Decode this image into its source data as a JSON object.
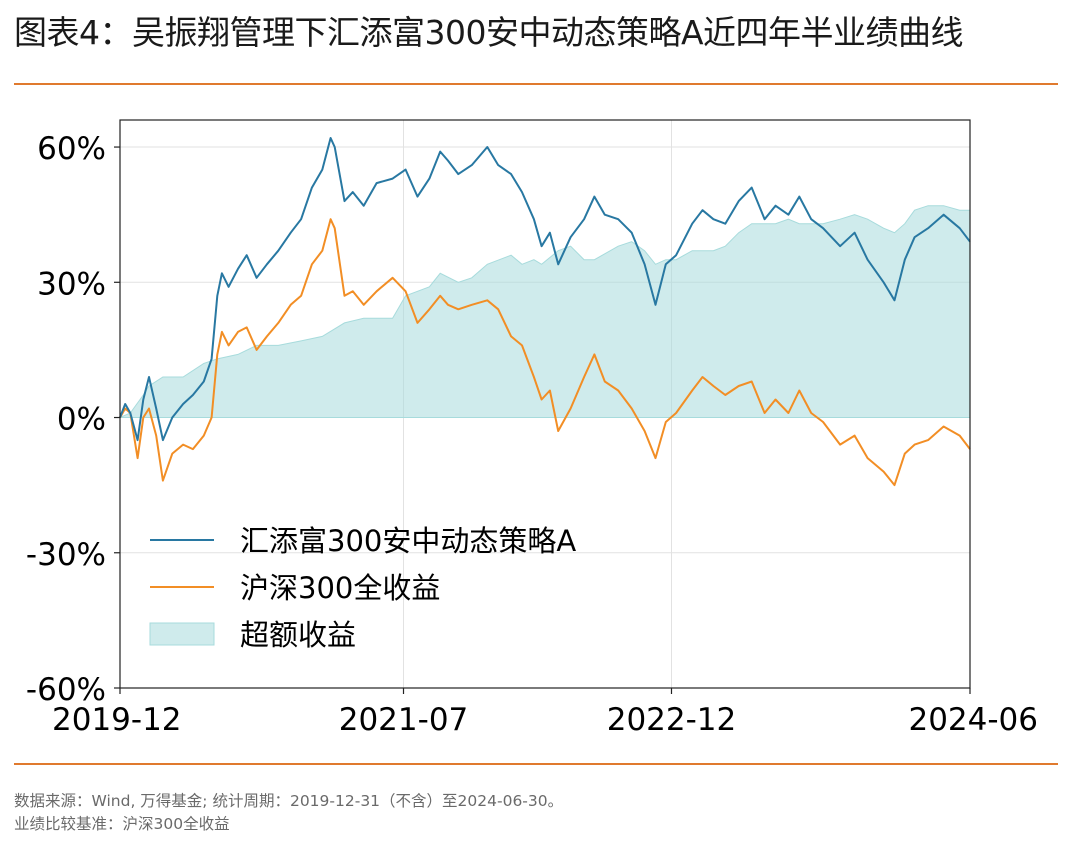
{
  "header": {
    "title": "图表4：吴振翔管理下汇添富300安中动态策略A近四年半业绩曲线"
  },
  "footer": {
    "source_note": "数据来源：Wind, 万得基金; 统计周期：2019-12-31（不含）至2024-06-30。",
    "benchmark_note": "业绩比较基准：沪深300全收益"
  },
  "chart_data": {
    "type": "line",
    "title": "",
    "xlabel": "",
    "ylabel": "",
    "x_ticks": [
      "2019-12",
      "2021-07",
      "2022-12",
      "2024-06"
    ],
    "y_ticks": [
      "60%",
      "30%",
      "0%",
      "-30%",
      "-60%"
    ],
    "ylim": [
      -60,
      66
    ],
    "xlim": [
      "2019-12-31",
      "2024-06-30"
    ],
    "grid": true,
    "legend_position": "lower-left",
    "colors": {
      "fund": "#2878a2",
      "benchmark": "#f28e25",
      "excess": "#a7dbdc"
    },
    "series": [
      {
        "name": "汇添富300安中动态策略A",
        "kind": "line",
        "points": [
          [
            "2019-12-31",
            0
          ],
          [
            "2020-01-10",
            3
          ],
          [
            "2020-01-20",
            1
          ],
          [
            "2020-02-03",
            -5
          ],
          [
            "2020-02-14",
            4
          ],
          [
            "2020-02-25",
            9
          ],
          [
            "2020-03-10",
            2
          ],
          [
            "2020-03-23",
            -5
          ],
          [
            "2020-04-10",
            0
          ],
          [
            "2020-05-01",
            3
          ],
          [
            "2020-05-20",
            5
          ],
          [
            "2020-06-10",
            8
          ],
          [
            "2020-06-25",
            13
          ],
          [
            "2020-07-06",
            27
          ],
          [
            "2020-07-15",
            32
          ],
          [
            "2020-07-28",
            29
          ],
          [
            "2020-08-15",
            33
          ],
          [
            "2020-09-01",
            36
          ],
          [
            "2020-09-20",
            31
          ],
          [
            "2020-10-10",
            34
          ],
          [
            "2020-11-01",
            37
          ],
          [
            "2020-11-25",
            41
          ],
          [
            "2020-12-15",
            44
          ],
          [
            "2021-01-05",
            51
          ],
          [
            "2021-01-25",
            55
          ],
          [
            "2021-02-10",
            62
          ],
          [
            "2021-02-18",
            60
          ],
          [
            "2021-03-09",
            48
          ],
          [
            "2021-03-25",
            50
          ],
          [
            "2021-04-15",
            47
          ],
          [
            "2021-05-10",
            52
          ],
          [
            "2021-06-10",
            53
          ],
          [
            "2021-07-05",
            55
          ],
          [
            "2021-07-28",
            49
          ],
          [
            "2021-08-20",
            53
          ],
          [
            "2021-09-10",
            59
          ],
          [
            "2021-09-25",
            57
          ],
          [
            "2021-10-15",
            54
          ],
          [
            "2021-11-10",
            56
          ],
          [
            "2021-12-10",
            60
          ],
          [
            "2021-12-31",
            56
          ],
          [
            "2022-01-25",
            54
          ],
          [
            "2022-02-15",
            50
          ],
          [
            "2022-03-10",
            44
          ],
          [
            "2022-03-25",
            38
          ],
          [
            "2022-04-10",
            41
          ],
          [
            "2022-04-26",
            34
          ],
          [
            "2022-05-20",
            40
          ],
          [
            "2022-06-15",
            44
          ],
          [
            "2022-07-05",
            49
          ],
          [
            "2022-07-25",
            45
          ],
          [
            "2022-08-20",
            44
          ],
          [
            "2022-09-15",
            41
          ],
          [
            "2022-10-10",
            34
          ],
          [
            "2022-10-31",
            25
          ],
          [
            "2022-11-20",
            34
          ],
          [
            "2022-12-10",
            36
          ],
          [
            "2023-01-10",
            43
          ],
          [
            "2023-01-30",
            46
          ],
          [
            "2023-02-20",
            44
          ],
          [
            "2023-03-15",
            43
          ],
          [
            "2023-04-10",
            48
          ],
          [
            "2023-05-05",
            51
          ],
          [
            "2023-05-30",
            44
          ],
          [
            "2023-06-20",
            47
          ],
          [
            "2023-07-15",
            45
          ],
          [
            "2023-08-05",
            49
          ],
          [
            "2023-08-28",
            44
          ],
          [
            "2023-09-20",
            42
          ],
          [
            "2023-10-23",
            38
          ],
          [
            "2023-11-20",
            41
          ],
          [
            "2023-12-15",
            35
          ],
          [
            "2024-01-15",
            30
          ],
          [
            "2024-02-05",
            26
          ],
          [
            "2024-02-25",
            35
          ],
          [
            "2024-03-15",
            40
          ],
          [
            "2024-04-10",
            42
          ],
          [
            "2024-05-10",
            45
          ],
          [
            "2024-06-10",
            42
          ],
          [
            "2024-06-30",
            39
          ]
        ]
      },
      {
        "name": "沪深300全收益",
        "kind": "line",
        "points": [
          [
            "2019-12-31",
            0
          ],
          [
            "2020-01-10",
            2
          ],
          [
            "2020-01-20",
            1
          ],
          [
            "2020-02-03",
            -9
          ],
          [
            "2020-02-14",
            0
          ],
          [
            "2020-02-25",
            2
          ],
          [
            "2020-03-10",
            -4
          ],
          [
            "2020-03-23",
            -14
          ],
          [
            "2020-04-10",
            -8
          ],
          [
            "2020-05-01",
            -6
          ],
          [
            "2020-05-20",
            -7
          ],
          [
            "2020-06-10",
            -4
          ],
          [
            "2020-06-25",
            0
          ],
          [
            "2020-07-06",
            14
          ],
          [
            "2020-07-15",
            19
          ],
          [
            "2020-07-28",
            16
          ],
          [
            "2020-08-15",
            19
          ],
          [
            "2020-09-01",
            20
          ],
          [
            "2020-09-20",
            15
          ],
          [
            "2020-10-10",
            18
          ],
          [
            "2020-11-01",
            21
          ],
          [
            "2020-11-25",
            25
          ],
          [
            "2020-12-15",
            27
          ],
          [
            "2021-01-05",
            34
          ],
          [
            "2021-01-25",
            37
          ],
          [
            "2021-02-10",
            44
          ],
          [
            "2021-02-18",
            42
          ],
          [
            "2021-03-09",
            27
          ],
          [
            "2021-03-25",
            28
          ],
          [
            "2021-04-15",
            25
          ],
          [
            "2021-05-10",
            28
          ],
          [
            "2021-06-10",
            31
          ],
          [
            "2021-07-05",
            28
          ],
          [
            "2021-07-28",
            21
          ],
          [
            "2021-08-20",
            24
          ],
          [
            "2021-09-10",
            27
          ],
          [
            "2021-09-25",
            25
          ],
          [
            "2021-10-15",
            24
          ],
          [
            "2021-11-10",
            25
          ],
          [
            "2021-12-10",
            26
          ],
          [
            "2021-12-31",
            24
          ],
          [
            "2022-01-25",
            18
          ],
          [
            "2022-02-15",
            16
          ],
          [
            "2022-03-10",
            9
          ],
          [
            "2022-03-25",
            4
          ],
          [
            "2022-04-10",
            6
          ],
          [
            "2022-04-26",
            -3
          ],
          [
            "2022-05-20",
            2
          ],
          [
            "2022-06-15",
            9
          ],
          [
            "2022-07-05",
            14
          ],
          [
            "2022-07-25",
            8
          ],
          [
            "2022-08-20",
            6
          ],
          [
            "2022-09-15",
            2
          ],
          [
            "2022-10-10",
            -3
          ],
          [
            "2022-10-31",
            -9
          ],
          [
            "2022-11-20",
            -1
          ],
          [
            "2022-12-10",
            1
          ],
          [
            "2023-01-10",
            6
          ],
          [
            "2023-01-30",
            9
          ],
          [
            "2023-02-20",
            7
          ],
          [
            "2023-03-15",
            5
          ],
          [
            "2023-04-10",
            7
          ],
          [
            "2023-05-05",
            8
          ],
          [
            "2023-05-30",
            1
          ],
          [
            "2023-06-20",
            4
          ],
          [
            "2023-07-15",
            1
          ],
          [
            "2023-08-05",
            6
          ],
          [
            "2023-08-28",
            1
          ],
          [
            "2023-09-20",
            -1
          ],
          [
            "2023-10-23",
            -6
          ],
          [
            "2023-11-20",
            -4
          ],
          [
            "2023-12-15",
            -9
          ],
          [
            "2024-01-15",
            -12
          ],
          [
            "2024-02-05",
            -15
          ],
          [
            "2024-02-25",
            -8
          ],
          [
            "2024-03-15",
            -6
          ],
          [
            "2024-04-10",
            -5
          ],
          [
            "2024-05-10",
            -2
          ],
          [
            "2024-06-10",
            -4
          ],
          [
            "2024-06-30",
            -7
          ]
        ]
      },
      {
        "name": "超额收益",
        "kind": "area",
        "points": [
          [
            "2019-12-31",
            0
          ],
          [
            "2020-01-20",
            1
          ],
          [
            "2020-02-14",
            5
          ],
          [
            "2020-02-25",
            7
          ],
          [
            "2020-03-23",
            9
          ],
          [
            "2020-05-01",
            9
          ],
          [
            "2020-06-10",
            12
          ],
          [
            "2020-07-06",
            13
          ],
          [
            "2020-08-15",
            14
          ],
          [
            "2020-09-20",
            16
          ],
          [
            "2020-11-01",
            16
          ],
          [
            "2020-12-15",
            17
          ],
          [
            "2021-01-25",
            18
          ],
          [
            "2021-03-09",
            21
          ],
          [
            "2021-04-15",
            22
          ],
          [
            "2021-06-10",
            22
          ],
          [
            "2021-07-05",
            27
          ],
          [
            "2021-07-28",
            28
          ],
          [
            "2021-08-20",
            29
          ],
          [
            "2021-09-10",
            32
          ],
          [
            "2021-10-15",
            30
          ],
          [
            "2021-11-10",
            31
          ],
          [
            "2021-12-10",
            34
          ],
          [
            "2022-01-25",
            36
          ],
          [
            "2022-02-15",
            34
          ],
          [
            "2022-03-10",
            35
          ],
          [
            "2022-03-25",
            34
          ],
          [
            "2022-04-26",
            37
          ],
          [
            "2022-05-20",
            38
          ],
          [
            "2022-06-15",
            35
          ],
          [
            "2022-07-05",
            35
          ],
          [
            "2022-08-20",
            38
          ],
          [
            "2022-09-15",
            39
          ],
          [
            "2022-10-10",
            37
          ],
          [
            "2022-10-31",
            34
          ],
          [
            "2022-11-20",
            35
          ],
          [
            "2022-12-10",
            35
          ],
          [
            "2023-01-10",
            37
          ],
          [
            "2023-02-20",
            37
          ],
          [
            "2023-03-15",
            38
          ],
          [
            "2023-04-10",
            41
          ],
          [
            "2023-05-05",
            43
          ],
          [
            "2023-05-30",
            43
          ],
          [
            "2023-06-20",
            43
          ],
          [
            "2023-07-15",
            44
          ],
          [
            "2023-08-05",
            43
          ],
          [
            "2023-08-28",
            43
          ],
          [
            "2023-09-20",
            43
          ],
          [
            "2023-10-23",
            44
          ],
          [
            "2023-11-20",
            45
          ],
          [
            "2023-12-15",
            44
          ],
          [
            "2024-01-15",
            42
          ],
          [
            "2024-02-05",
            41
          ],
          [
            "2024-02-25",
            43
          ],
          [
            "2024-03-15",
            46
          ],
          [
            "2024-04-10",
            47
          ],
          [
            "2024-05-10",
            47
          ],
          [
            "2024-06-10",
            46
          ],
          [
            "2024-06-30",
            46
          ]
        ]
      }
    ]
  }
}
